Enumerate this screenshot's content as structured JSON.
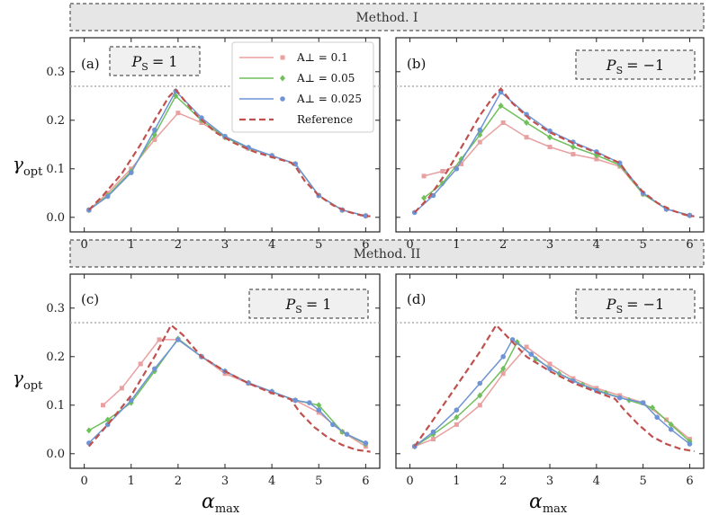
{
  "figure": {
    "banners": [
      "Method. I",
      "Method. II"
    ],
    "x_axis_label": "α",
    "x_axis_sub": "max",
    "y_axis_label": "γ",
    "y_axis_sub": "opt",
    "x_ticks": [
      "0",
      "1",
      "2",
      "3",
      "4",
      "5",
      "6"
    ],
    "y_ticks": [
      "0.0",
      "0.1",
      "0.2",
      "0.3"
    ]
  },
  "legend": {
    "entries": [
      {
        "label": "A⊥ = 0.1",
        "color": "#e8a0a0",
        "marker": "square"
      },
      {
        "label": "A⊥ = 0.05",
        "color": "#6fbf5a",
        "marker": "diamond"
      },
      {
        "label": "A⊥ = 0.025",
        "color": "#6f94d6",
        "marker": "circle"
      },
      {
        "label": "Reference",
        "color": "#c0504d",
        "marker": "dashed"
      }
    ]
  },
  "chart_data": [
    {
      "type": "line",
      "panel": "(a)",
      "method": "Method. I",
      "ps_label": "P",
      "ps_sub": "S",
      "ps_value": "= 1",
      "xlim": [
        -0.3,
        6.3
      ],
      "ylim": [
        -0.03,
        0.37
      ],
      "hline": 0.27,
      "reference": {
        "x": [
          0.1,
          0.4,
          0.8,
          1.2,
          1.5,
          1.8,
          1.95,
          2.1,
          2.4,
          2.8,
          3.2,
          3.6,
          4.0,
          4.4,
          4.5,
          4.7,
          5.0,
          5.3,
          5.6,
          5.9,
          6.1
        ],
        "y": [
          0.015,
          0.045,
          0.09,
          0.15,
          0.2,
          0.248,
          0.263,
          0.245,
          0.21,
          0.175,
          0.153,
          0.136,
          0.124,
          0.113,
          0.105,
          0.075,
          0.045,
          0.025,
          0.012,
          0.004,
          0.002
        ]
      },
      "series": [
        {
          "name": "A⊥ = 0.1",
          "x": [
            0.1,
            0.5,
            1.0,
            1.5,
            2.0,
            2.5,
            3.0,
            3.5,
            4.0,
            4.5,
            5.0,
            5.5,
            6.0
          ],
          "y": [
            0.015,
            0.05,
            0.1,
            0.16,
            0.215,
            0.195,
            0.165,
            0.142,
            0.127,
            0.11,
            0.045,
            0.015,
            0.003
          ]
        },
        {
          "name": "A⊥ = 0.05",
          "x": [
            0.1,
            0.5,
            1.0,
            1.5,
            1.95,
            2.5,
            3.0,
            3.5,
            4.0,
            4.5,
            5.0,
            5.5,
            6.0
          ],
          "y": [
            0.015,
            0.045,
            0.095,
            0.17,
            0.25,
            0.2,
            0.165,
            0.143,
            0.127,
            0.11,
            0.045,
            0.015,
            0.003
          ]
        },
        {
          "name": "A⊥ = 0.025",
          "x": [
            0.1,
            0.5,
            1.0,
            1.5,
            1.95,
            2.5,
            3.0,
            3.5,
            4.0,
            4.5,
            5.0,
            5.5,
            6.0
          ],
          "y": [
            0.015,
            0.043,
            0.092,
            0.18,
            0.26,
            0.205,
            0.167,
            0.144,
            0.127,
            0.11,
            0.045,
            0.015,
            0.003
          ]
        }
      ]
    },
    {
      "type": "line",
      "panel": "(b)",
      "method": "Method. I",
      "ps_label": "P",
      "ps_sub": "S",
      "ps_value": "= −1",
      "xlim": [
        -0.3,
        6.3
      ],
      "ylim": [
        -0.03,
        0.37
      ],
      "hline": 0.27,
      "reference": {
        "x": [
          0.1,
          0.4,
          0.8,
          1.2,
          1.5,
          1.8,
          1.95,
          2.2,
          2.6,
          3.0,
          3.5,
          4.0,
          4.5,
          4.7,
          5.0,
          5.3,
          5.6,
          5.9,
          6.1
        ],
        "y": [
          0.01,
          0.04,
          0.095,
          0.16,
          0.21,
          0.25,
          0.265,
          0.235,
          0.2,
          0.175,
          0.153,
          0.133,
          0.112,
          0.085,
          0.052,
          0.03,
          0.015,
          0.005,
          0.002
        ]
      },
      "series": [
        {
          "name": "A⊥ = 0.1",
          "x": [
            0.3,
            0.7,
            1.1,
            1.5,
            2.0,
            2.5,
            3.0,
            3.5,
            4.0,
            4.5,
            5.0,
            5.5,
            6.0
          ],
          "y": [
            0.085,
            0.095,
            0.11,
            0.155,
            0.195,
            0.165,
            0.145,
            0.13,
            0.12,
            0.105,
            0.048,
            0.017,
            0.004
          ]
        },
        {
          "name": "A⊥ = 0.05",
          "x": [
            0.3,
            0.7,
            1.1,
            1.5,
            1.95,
            2.5,
            3.0,
            3.5,
            4.0,
            4.5,
            5.0,
            5.5,
            6.0
          ],
          "y": [
            0.04,
            0.07,
            0.12,
            0.17,
            0.23,
            0.195,
            0.165,
            0.145,
            0.128,
            0.108,
            0.048,
            0.017,
            0.004
          ]
        },
        {
          "name": "A⊥ = 0.025",
          "x": [
            0.1,
            0.5,
            1.0,
            1.5,
            1.95,
            2.5,
            3.0,
            3.5,
            4.0,
            4.5,
            5.0,
            5.5,
            6.0
          ],
          "y": [
            0.01,
            0.045,
            0.1,
            0.18,
            0.258,
            0.212,
            0.178,
            0.155,
            0.135,
            0.112,
            0.05,
            0.017,
            0.004
          ]
        }
      ]
    },
    {
      "type": "line",
      "panel": "(c)",
      "method": "Method. II",
      "ps_label": "P",
      "ps_sub": "S",
      "ps_value": "= 1",
      "xlim": [
        -0.3,
        6.3
      ],
      "ylim": [
        -0.03,
        0.37
      ],
      "hline": 0.27,
      "reference": {
        "x": [
          0.1,
          0.5,
          1.0,
          1.5,
          1.85,
          2.1,
          2.5,
          3.0,
          3.5,
          4.0,
          4.4,
          4.6,
          4.9,
          5.2,
          5.5,
          5.8,
          6.1
        ],
        "y": [
          0.015,
          0.06,
          0.12,
          0.2,
          0.265,
          0.245,
          0.2,
          0.17,
          0.145,
          0.125,
          0.112,
          0.085,
          0.055,
          0.033,
          0.018,
          0.008,
          0.004
        ]
      },
      "series": [
        {
          "name": "A⊥ = 0.1",
          "x": [
            0.4,
            0.8,
            1.2,
            1.6,
            2.0,
            2.5,
            3.0,
            3.5,
            4.0,
            4.5,
            5.0,
            5.5,
            6.0
          ],
          "y": [
            0.1,
            0.135,
            0.185,
            0.235,
            0.235,
            0.2,
            0.165,
            0.145,
            0.127,
            0.11,
            0.085,
            0.045,
            0.015
          ]
        },
        {
          "name": "A⊥ = 0.05",
          "x": [
            0.1,
            0.5,
            1.0,
            1.5,
            2.0,
            2.5,
            3.0,
            3.5,
            4.0,
            4.5,
            5.0,
            5.5,
            6.0
          ],
          "y": [
            0.048,
            0.07,
            0.105,
            0.17,
            0.237,
            0.2,
            0.17,
            0.146,
            0.128,
            0.11,
            0.1,
            0.045,
            0.02
          ]
        },
        {
          "name": "A⊥ = 0.025",
          "x": [
            0.1,
            0.5,
            1.0,
            1.5,
            2.0,
            2.5,
            3.0,
            3.5,
            4.0,
            4.5,
            4.8,
            5.0,
            5.3,
            5.6,
            6.0
          ],
          "y": [
            0.022,
            0.06,
            0.11,
            0.175,
            0.235,
            0.2,
            0.17,
            0.146,
            0.128,
            0.11,
            0.105,
            0.09,
            0.06,
            0.04,
            0.022
          ]
        }
      ]
    },
    {
      "type": "line",
      "panel": "(d)",
      "method": "Method. II",
      "ps_label": "P",
      "ps_sub": "S",
      "ps_value": "= −1",
      "xlim": [
        -0.3,
        6.3
      ],
      "ylim": [
        -0.03,
        0.37
      ],
      "hline": 0.27,
      "reference": {
        "x": [
          0.1,
          0.5,
          1.0,
          1.5,
          1.85,
          2.1,
          2.5,
          3.0,
          3.5,
          4.0,
          4.4,
          4.6,
          4.9,
          5.2,
          5.5,
          5.8,
          6.1
        ],
        "y": [
          0.015,
          0.07,
          0.14,
          0.21,
          0.265,
          0.24,
          0.2,
          0.17,
          0.146,
          0.127,
          0.113,
          0.09,
          0.06,
          0.035,
          0.02,
          0.01,
          0.005
        ]
      },
      "series": [
        {
          "name": "A⊥ = 0.1",
          "x": [
            0.1,
            0.5,
            1.0,
            1.5,
            2.0,
            2.5,
            3.0,
            3.5,
            4.0,
            4.5,
            5.0,
            5.5,
            6.0
          ],
          "y": [
            0.015,
            0.03,
            0.06,
            0.1,
            0.165,
            0.22,
            0.185,
            0.155,
            0.135,
            0.12,
            0.105,
            0.07,
            0.03
          ]
        },
        {
          "name": "A⊥ = 0.05",
          "x": [
            0.1,
            0.5,
            1.0,
            1.5,
            2.0,
            2.3,
            2.7,
            3.2,
            3.7,
            4.2,
            4.7,
            5.2,
            5.6,
            6.0
          ],
          "y": [
            0.015,
            0.04,
            0.075,
            0.12,
            0.175,
            0.23,
            0.195,
            0.165,
            0.142,
            0.125,
            0.11,
            0.095,
            0.06,
            0.025
          ]
        },
        {
          "name": "A⊥ = 0.025",
          "x": [
            0.1,
            0.5,
            1.0,
            1.5,
            2.0,
            2.2,
            2.6,
            3.0,
            3.5,
            4.0,
            4.5,
            5.0,
            5.3,
            5.6,
            6.0
          ],
          "y": [
            0.015,
            0.045,
            0.09,
            0.145,
            0.2,
            0.235,
            0.205,
            0.175,
            0.15,
            0.13,
            0.115,
            0.105,
            0.075,
            0.05,
            0.02
          ]
        }
      ]
    }
  ]
}
